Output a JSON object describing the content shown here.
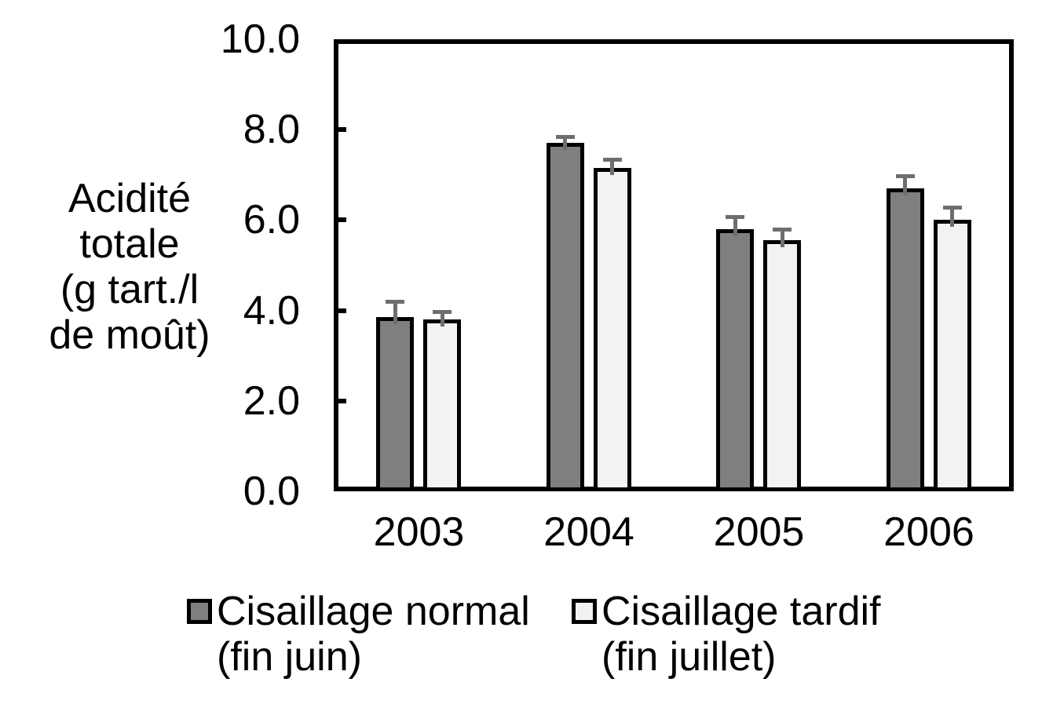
{
  "chart_data": {
    "type": "bar",
    "title": "",
    "categories": [
      "2003",
      "2004",
      "2005",
      "2006"
    ],
    "series": [
      {
        "name": "Cisaillage normal (fin juin)",
        "values": [
          3.85,
          7.7,
          5.8,
          6.7
        ],
        "errors": [
          0.35,
          0.15,
          0.27,
          0.28
        ],
        "fill": "#7f7f7f"
      },
      {
        "name": "Cisaillage tardif (fin juillet)",
        "values": [
          3.8,
          7.15,
          5.55,
          6.0
        ],
        "errors": [
          0.17,
          0.2,
          0.24,
          0.28
        ],
        "fill": "#f2f2f2"
      }
    ],
    "xlabel": "",
    "ylabel": "Acidité totale (g tart./l de moût)",
    "ylabel_lines": [
      "Acidité",
      "totale",
      "(g tart./l",
      "de moût)"
    ],
    "ylim": [
      0,
      10
    ],
    "yticks": [
      0,
      2,
      4,
      6,
      8,
      10
    ],
    "ytick_labels": [
      "0.0",
      "2.0",
      "4.0",
      "6.0",
      "8.0",
      "10.0"
    ],
    "grid": false,
    "legend_position": "bottom",
    "error_bars": true
  },
  "legend": {
    "items": [
      {
        "line1": "Cisaillage normal",
        "line2": "(fin juin)"
      },
      {
        "line1": "Cisaillage tardif",
        "line2": "(fin juillet)"
      }
    ]
  },
  "colors": {
    "bar_border": "#000000",
    "error_bar": "#6e6e6e",
    "axis": "#000000",
    "background": "#ffffff",
    "series_normal_fill": "#7f7f7f",
    "series_tardif_fill": "#f2f2f2"
  }
}
